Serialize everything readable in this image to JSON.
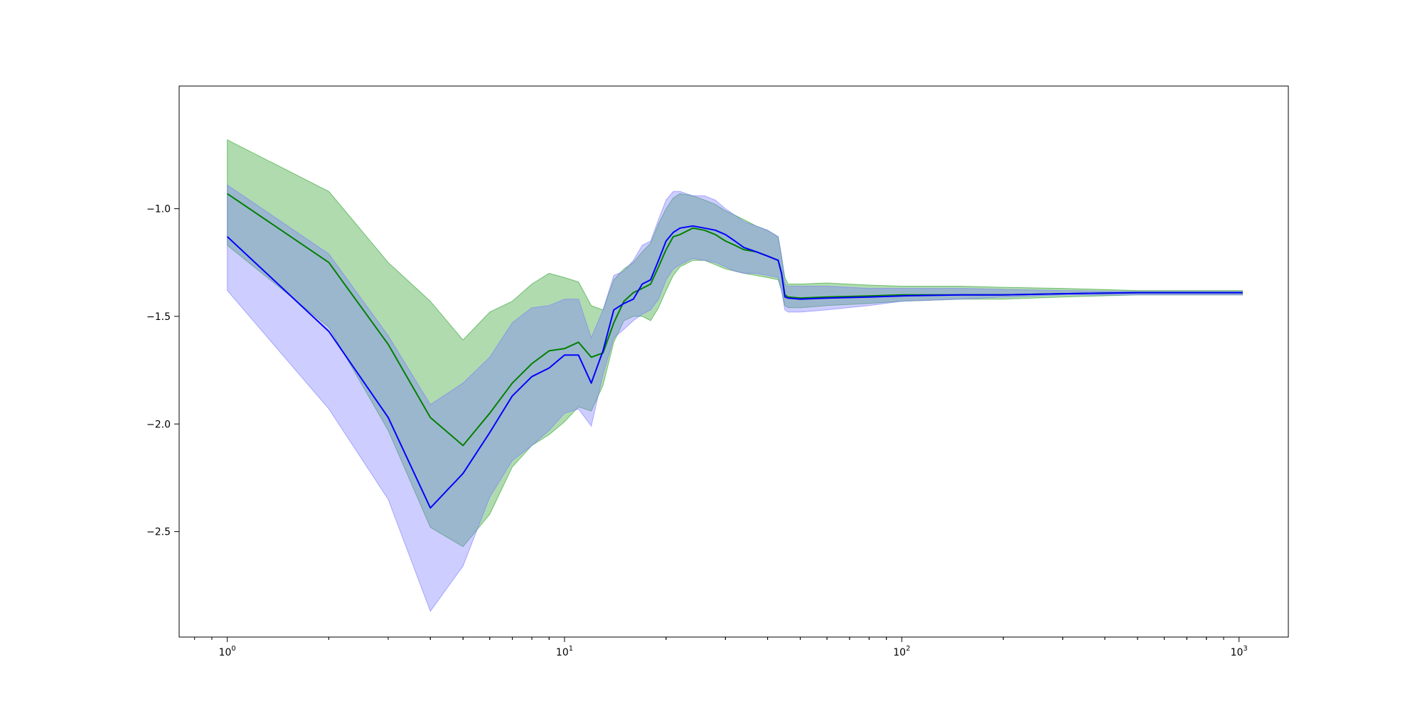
{
  "chart_data": {
    "type": "line",
    "title": "",
    "xlabel": "",
    "ylabel": "",
    "xscale": "log",
    "xlim": [
      0.72,
      1400
    ],
    "ylim": [
      -2.99,
      -0.43
    ],
    "grid": false,
    "legend": "none",
    "x_ticks": [
      {
        "base": "10",
        "exp": "0",
        "value": 1
      },
      {
        "base": "10",
        "exp": "1",
        "value": 10
      },
      {
        "base": "10",
        "exp": "2",
        "value": 100
      },
      {
        "base": "10",
        "exp": "3",
        "value": 1000
      }
    ],
    "y_ticks": [
      {
        "label": "−1.0",
        "value": -1.0
      },
      {
        "label": "−1.5",
        "value": -1.5
      },
      {
        "label": "−2.0",
        "value": -2.0
      },
      {
        "label": "−2.5",
        "value": -2.5
      }
    ],
    "series": [
      {
        "color": "#008000",
        "band_color": "#2ca02c",
        "points": [
          [
            1,
            -0.93,
            -1.17,
            -0.68
          ],
          [
            2,
            -1.25,
            -1.2,
            -0.92
          ],
          [
            3,
            -1.63,
            -1.6,
            -1.25
          ],
          [
            4,
            -1.97,
            -1.9,
            -1.43
          ],
          [
            5,
            -2.1,
            -1.81,
            -1.61
          ],
          [
            6,
            -1.95,
            -1.7,
            -1.48
          ],
          [
            7,
            -1.81,
            -1.52,
            -1.43
          ],
          [
            8,
            -1.72,
            -1.46,
            -1.35
          ],
          [
            9,
            -1.66,
            -1.45,
            -1.3
          ],
          [
            10,
            -1.65,
            -1.42,
            -1.32
          ],
          [
            11,
            -1.62,
            -1.42,
            -1.34
          ],
          [
            12,
            -1.69,
            -1.6,
            -1.45
          ],
          [
            13,
            -1.67,
            -1.48,
            -1.47
          ],
          [
            14,
            -1.53,
            -1.33,
            -1.33
          ],
          [
            15,
            -1.43,
            -1.28,
            -1.28
          ],
          [
            16,
            -1.39,
            -1.25,
            -1.25
          ],
          [
            17,
            -1.37,
            -1.2,
            -1.2
          ],
          [
            18,
            -1.35,
            -1.16,
            -1.16
          ],
          [
            19,
            -1.27,
            -1.07,
            -1.07
          ],
          [
            20,
            -1.19,
            -1.0,
            -1.0
          ],
          [
            21,
            -1.13,
            -0.95,
            -0.95
          ],
          [
            22,
            -1.12,
            -0.93,
            -0.93
          ],
          [
            24,
            -1.09,
            -0.94,
            -0.94
          ],
          [
            26,
            -1.1,
            -0.96,
            -0.96
          ],
          [
            28,
            -1.12,
            -0.98,
            -0.98
          ],
          [
            30,
            -1.15,
            -1.01,
            -1.01
          ],
          [
            32,
            -1.17,
            -1.03,
            -1.03
          ],
          [
            34,
            -1.19,
            -1.05,
            -1.05
          ],
          [
            37,
            -1.2,
            -1.08,
            -1.08
          ],
          [
            40,
            -1.22,
            -1.1,
            -1.1
          ],
          [
            43,
            -1.24,
            -1.13,
            -1.13
          ],
          [
            44,
            -1.3,
            -1.22,
            -1.22
          ],
          [
            45,
            -1.4,
            -1.32,
            -1.32
          ],
          [
            46,
            -1.41,
            -1.35,
            -1.35
          ],
          [
            50,
            -1.415,
            -1.35,
            -1.35
          ],
          [
            60,
            -1.41,
            -1.35,
            -1.345
          ],
          [
            80,
            -1.405,
            -1.36,
            -1.355
          ],
          [
            100,
            -1.4,
            -1.365,
            -1.36
          ],
          [
            150,
            -1.4,
            -1.37,
            -1.36
          ],
          [
            200,
            -1.4,
            -1.375,
            -1.365
          ],
          [
            300,
            -1.395,
            -1.38,
            -1.37
          ],
          [
            500,
            -1.39,
            -1.385,
            -1.38
          ],
          [
            1024,
            -1.39,
            -1.385,
            -1.38
          ]
        ],
        "lower": [
          [
            1,
            -1.17
          ],
          [
            2,
            -1.55
          ],
          [
            3,
            -2.03
          ],
          [
            4,
            -2.48
          ],
          [
            5,
            -2.57
          ],
          [
            6,
            -2.42
          ],
          [
            7,
            -2.2
          ],
          [
            8,
            -2.1
          ],
          [
            9,
            -2.05
          ],
          [
            10,
            -1.99
          ],
          [
            11,
            -1.92
          ],
          [
            12,
            -1.94
          ],
          [
            13,
            -1.82
          ],
          [
            14,
            -1.62
          ],
          [
            15,
            -1.52
          ],
          [
            16,
            -1.5
          ],
          [
            17,
            -1.5
          ],
          [
            18,
            -1.52
          ],
          [
            19,
            -1.46
          ],
          [
            20,
            -1.38
          ],
          [
            21,
            -1.31
          ],
          [
            22,
            -1.27
          ],
          [
            24,
            -1.24
          ],
          [
            26,
            -1.24
          ],
          [
            28,
            -1.26
          ],
          [
            30,
            -1.28
          ],
          [
            32,
            -1.29
          ],
          [
            34,
            -1.3
          ],
          [
            37,
            -1.31
          ],
          [
            40,
            -1.32
          ],
          [
            43,
            -1.33
          ],
          [
            44,
            -1.38
          ],
          [
            45,
            -1.45
          ],
          [
            46,
            -1.46
          ],
          [
            50,
            -1.46
          ],
          [
            60,
            -1.45
          ],
          [
            80,
            -1.44
          ],
          [
            100,
            -1.43
          ],
          [
            150,
            -1.42
          ],
          [
            200,
            -1.42
          ],
          [
            300,
            -1.41
          ],
          [
            500,
            -1.4
          ],
          [
            1024,
            -1.4
          ]
        ],
        "upper": [
          [
            1,
            -0.68
          ],
          [
            2,
            -0.92
          ],
          [
            3,
            -1.25
          ],
          [
            4,
            -1.43
          ],
          [
            5,
            -1.61
          ],
          [
            6,
            -1.48
          ],
          [
            7,
            -1.43
          ],
          [
            8,
            -1.35
          ],
          [
            9,
            -1.3
          ],
          [
            10,
            -1.32
          ],
          [
            11,
            -1.34
          ],
          [
            12,
            -1.45
          ],
          [
            13,
            -1.47
          ],
          [
            14,
            -1.33
          ],
          [
            15,
            -1.28
          ],
          [
            16,
            -1.25
          ],
          [
            17,
            -1.2
          ],
          [
            18,
            -1.16
          ],
          [
            19,
            -1.07
          ],
          [
            20,
            -1.0
          ],
          [
            21,
            -0.95
          ],
          [
            22,
            -0.93
          ],
          [
            24,
            -0.94
          ],
          [
            26,
            -0.96
          ],
          [
            28,
            -0.98
          ],
          [
            30,
            -1.01
          ],
          [
            32,
            -1.03
          ],
          [
            34,
            -1.05
          ],
          [
            37,
            -1.08
          ],
          [
            40,
            -1.1
          ],
          [
            43,
            -1.13
          ],
          [
            44,
            -1.22
          ],
          [
            45,
            -1.32
          ],
          [
            46,
            -1.35
          ],
          [
            50,
            -1.35
          ],
          [
            60,
            -1.345
          ],
          [
            80,
            -1.355
          ],
          [
            100,
            -1.36
          ],
          [
            150,
            -1.36
          ],
          [
            200,
            -1.365
          ],
          [
            300,
            -1.37
          ],
          [
            500,
            -1.38
          ],
          [
            1024,
            -1.38
          ]
        ]
      },
      {
        "color": "#0000ff",
        "band_color": "#7b7bff",
        "points": [
          [
            1,
            -1.13
          ],
          [
            2,
            -1.57
          ],
          [
            3,
            -1.97
          ],
          [
            4,
            -2.39
          ],
          [
            5,
            -2.23
          ],
          [
            6,
            -2.04
          ],
          [
            7,
            -1.87
          ],
          [
            8,
            -1.78
          ],
          [
            9,
            -1.74
          ],
          [
            10,
            -1.68
          ],
          [
            11,
            -1.68
          ],
          [
            12,
            -1.81
          ],
          [
            13,
            -1.66
          ],
          [
            14,
            -1.47
          ],
          [
            15,
            -1.44
          ],
          [
            16,
            -1.42
          ],
          [
            17,
            -1.35
          ],
          [
            18,
            -1.33
          ],
          [
            19,
            -1.24
          ],
          [
            20,
            -1.15
          ],
          [
            21,
            -1.11
          ],
          [
            22,
            -1.09
          ],
          [
            24,
            -1.08
          ],
          [
            26,
            -1.09
          ],
          [
            28,
            -1.1
          ],
          [
            30,
            -1.12
          ],
          [
            32,
            -1.15
          ],
          [
            34,
            -1.18
          ],
          [
            37,
            -1.2
          ],
          [
            40,
            -1.22
          ],
          [
            43,
            -1.24
          ],
          [
            44,
            -1.3
          ],
          [
            45,
            -1.41
          ],
          [
            46,
            -1.415
          ],
          [
            50,
            -1.42
          ],
          [
            60,
            -1.415
          ],
          [
            80,
            -1.41
          ],
          [
            100,
            -1.405
          ],
          [
            150,
            -1.4
          ],
          [
            200,
            -1.4
          ],
          [
            300,
            -1.395
          ],
          [
            500,
            -1.39
          ],
          [
            1024,
            -1.39
          ]
        ],
        "lower": [
          [
            1,
            -1.38
          ],
          [
            2,
            -1.93
          ],
          [
            3,
            -2.35
          ],
          [
            4,
            -2.87
          ],
          [
            5,
            -2.66
          ],
          [
            6,
            -2.34
          ],
          [
            7,
            -2.17
          ],
          [
            8,
            -2.1
          ],
          [
            9,
            -2.03
          ],
          [
            10,
            -1.95
          ],
          [
            11,
            -1.93
          ],
          [
            12,
            -2.01
          ],
          [
            13,
            -1.77
          ],
          [
            14,
            -1.6
          ],
          [
            15,
            -1.56
          ],
          [
            16,
            -1.52
          ],
          [
            17,
            -1.49
          ],
          [
            18,
            -1.47
          ],
          [
            19,
            -1.42
          ],
          [
            20,
            -1.33
          ],
          [
            21,
            -1.28
          ],
          [
            22,
            -1.26
          ],
          [
            24,
            -1.23
          ],
          [
            26,
            -1.24
          ],
          [
            28,
            -1.25
          ],
          [
            30,
            -1.27
          ],
          [
            32,
            -1.29
          ],
          [
            34,
            -1.3
          ],
          [
            37,
            -1.3
          ],
          [
            40,
            -1.31
          ],
          [
            43,
            -1.32
          ],
          [
            44,
            -1.38
          ],
          [
            45,
            -1.47
          ],
          [
            46,
            -1.48
          ],
          [
            50,
            -1.48
          ],
          [
            60,
            -1.47
          ],
          [
            80,
            -1.45
          ],
          [
            100,
            -1.43
          ],
          [
            150,
            -1.42
          ],
          [
            200,
            -1.41
          ],
          [
            300,
            -1.4
          ],
          [
            500,
            -1.4
          ],
          [
            1024,
            -1.4
          ]
        ],
        "upper": [
          [
            1,
            -0.89
          ],
          [
            2,
            -1.21
          ],
          [
            3,
            -1.59
          ],
          [
            4,
            -1.91
          ],
          [
            5,
            -1.81
          ],
          [
            6,
            -1.69
          ],
          [
            7,
            -1.53
          ],
          [
            8,
            -1.46
          ],
          [
            9,
            -1.45
          ],
          [
            10,
            -1.42
          ],
          [
            11,
            -1.42
          ],
          [
            12,
            -1.6
          ],
          [
            13,
            -1.47
          ],
          [
            14,
            -1.31
          ],
          [
            15,
            -1.29
          ],
          [
            16,
            -1.24
          ],
          [
            17,
            -1.17
          ],
          [
            18,
            -1.15
          ],
          [
            19,
            -1.05
          ],
          [
            20,
            -0.96
          ],
          [
            21,
            -0.92
          ],
          [
            22,
            -0.92
          ],
          [
            24,
            -0.94
          ],
          [
            26,
            -0.94
          ],
          [
            28,
            -0.96
          ],
          [
            30,
            -1.0
          ],
          [
            32,
            -1.03
          ],
          [
            34,
            -1.06
          ],
          [
            37,
            -1.08
          ],
          [
            40,
            -1.1
          ],
          [
            43,
            -1.13
          ],
          [
            44,
            -1.22
          ],
          [
            45,
            -1.35
          ],
          [
            46,
            -1.36
          ],
          [
            50,
            -1.36
          ],
          [
            60,
            -1.36
          ],
          [
            80,
            -1.37
          ],
          [
            100,
            -1.37
          ],
          [
            150,
            -1.37
          ],
          [
            200,
            -1.375
          ],
          [
            300,
            -1.38
          ],
          [
            500,
            -1.385
          ],
          [
            1024,
            -1.385
          ]
        ]
      }
    ]
  }
}
